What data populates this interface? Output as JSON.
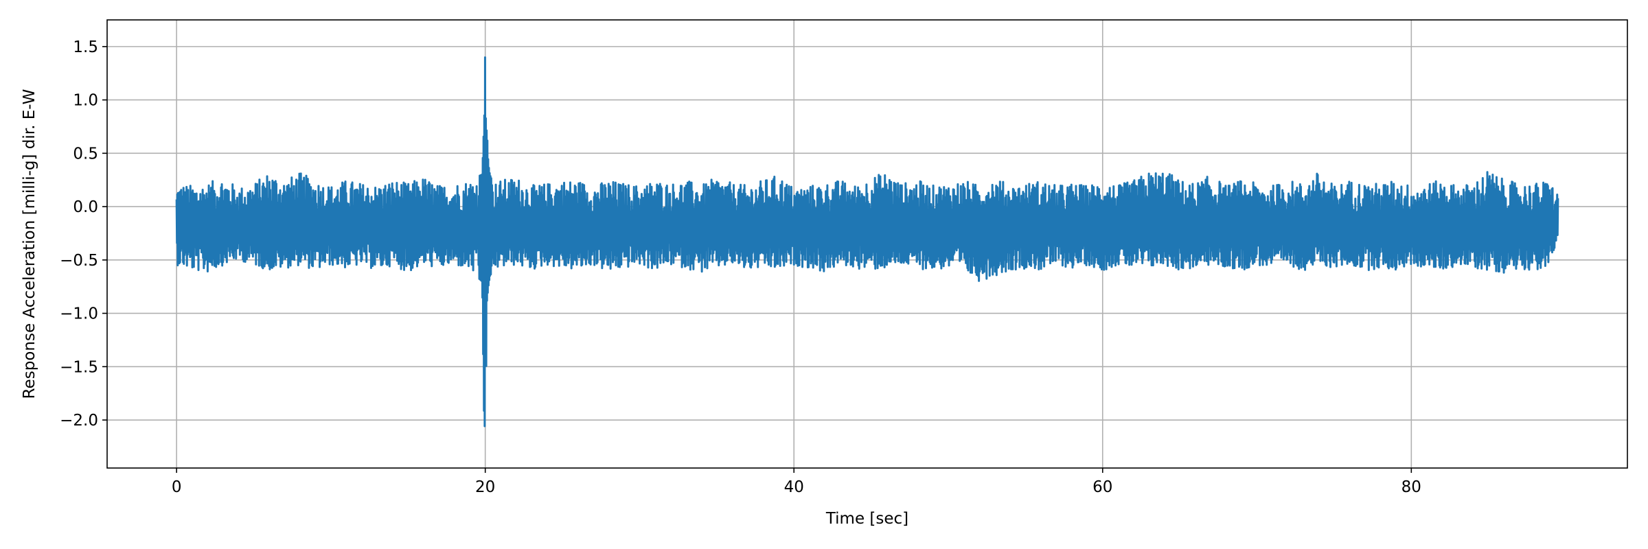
{
  "chart_data": {
    "type": "line",
    "title": "",
    "xlabel": "Time [sec]",
    "ylabel": "Response Acceleration [milli-g] dir. E-W",
    "xlim": [
      -4.5,
      94
    ],
    "ylim": [
      -2.45,
      1.75
    ],
    "x_ticks": [
      0,
      20,
      40,
      60,
      80
    ],
    "x_tick_labels": [
      "0",
      "20",
      "40",
      "60",
      "80"
    ],
    "y_ticks": [
      1.5,
      1.0,
      0.5,
      0.0,
      -0.5,
      -1.0,
      -1.5,
      -2.0
    ],
    "y_tick_labels": [
      "1.5",
      "1.0",
      "0.5",
      "0.0",
      "−0.5",
      "−1.0",
      "−1.5",
      "−2.0"
    ],
    "grid": true,
    "legend": "none",
    "series_color": "#1f77b4",
    "series": [
      {
        "x": [
          0,
          0.05,
          1,
          2,
          3,
          4,
          5,
          6,
          7,
          8,
          9,
          10,
          11,
          12,
          13,
          14,
          15,
          16,
          17,
          18,
          19,
          19.8,
          19.95,
          20.0,
          20.05,
          20.1,
          20.2,
          20.3,
          20.5,
          21,
          22,
          23,
          24,
          25,
          26,
          27,
          28,
          29,
          30,
          31,
          32,
          33,
          34,
          35,
          36,
          37,
          38,
          39,
          40,
          41,
          42,
          43,
          44,
          45,
          46,
          47,
          48,
          49,
          50,
          51,
          52,
          53,
          54,
          55,
          56,
          57,
          58,
          59,
          60,
          61,
          62,
          63,
          64,
          65,
          66,
          67,
          68,
          69,
          70,
          71,
          72,
          73,
          74,
          75,
          76,
          77,
          78,
          79,
          80,
          81,
          82,
          83,
          84,
          85,
          86,
          87,
          88,
          89,
          89.5
        ],
        "y_max": [
          0.15,
          0.22,
          0.2,
          0.22,
          0.28,
          0.18,
          0.22,
          0.33,
          0.25,
          0.32,
          0.25,
          0.2,
          0.25,
          0.22,
          0.2,
          0.25,
          0.22,
          0.28,
          0.2,
          0.22,
          0.25,
          0.3,
          0.9,
          1.55,
          0.6,
          0.75,
          0.4,
          0.3,
          0.22,
          0.25,
          0.28,
          0.2,
          0.22,
          0.25,
          0.25,
          0.2,
          0.25,
          0.22,
          0.2,
          0.25,
          0.22,
          0.25,
          0.2,
          0.28,
          0.22,
          0.2,
          0.25,
          0.3,
          0.18,
          0.2,
          0.22,
          0.25,
          0.2,
          0.28,
          0.33,
          0.22,
          0.25,
          0.2,
          0.22,
          0.25,
          0.2,
          0.28,
          0.2,
          0.22,
          0.25,
          0.2,
          0.22,
          0.2,
          0.25,
          0.2,
          0.25,
          0.33,
          0.35,
          0.25,
          0.22,
          0.3,
          0.2,
          0.25,
          0.22,
          0.2,
          0.25,
          0.22,
          0.33,
          0.2,
          0.25,
          0.22,
          0.22,
          0.25,
          0.2,
          0.22,
          0.25,
          0.2,
          0.22,
          0.35,
          0.25,
          0.22,
          0.22,
          0.25,
          0.12
        ],
        "y_min": [
          -0.33,
          -0.55,
          -0.6,
          -0.62,
          -0.55,
          -0.5,
          -0.55,
          -0.6,
          -0.58,
          -0.55,
          -0.6,
          -0.55,
          -0.58,
          -0.55,
          -0.6,
          -0.55,
          -0.62,
          -0.55,
          -0.58,
          -0.55,
          -0.6,
          -0.7,
          -2.3,
          -1.4,
          -1.7,
          -0.9,
          -0.75,
          -0.65,
          -0.6,
          -0.58,
          -0.55,
          -0.6,
          -0.55,
          -0.58,
          -0.6,
          -0.55,
          -0.62,
          -0.58,
          -0.55,
          -0.6,
          -0.55,
          -0.58,
          -0.62,
          -0.58,
          -0.55,
          -0.6,
          -0.58,
          -0.6,
          -0.55,
          -0.58,
          -0.62,
          -0.55,
          -0.58,
          -0.6,
          -0.58,
          -0.55,
          -0.58,
          -0.6,
          -0.58,
          -0.62,
          -0.7,
          -0.65,
          -0.6,
          -0.58,
          -0.6,
          -0.55,
          -0.58,
          -0.55,
          -0.6,
          -0.55,
          -0.58,
          -0.58,
          -0.55,
          -0.6,
          -0.58,
          -0.55,
          -0.58,
          -0.6,
          -0.55,
          -0.58,
          -0.55,
          -0.6,
          -0.55,
          -0.58,
          -0.55,
          -0.6,
          -0.58,
          -0.6,
          -0.55,
          -0.58,
          -0.6,
          -0.55,
          -0.58,
          -0.6,
          -0.62,
          -0.58,
          -0.6,
          -0.58,
          -0.25
        ]
      }
    ]
  }
}
